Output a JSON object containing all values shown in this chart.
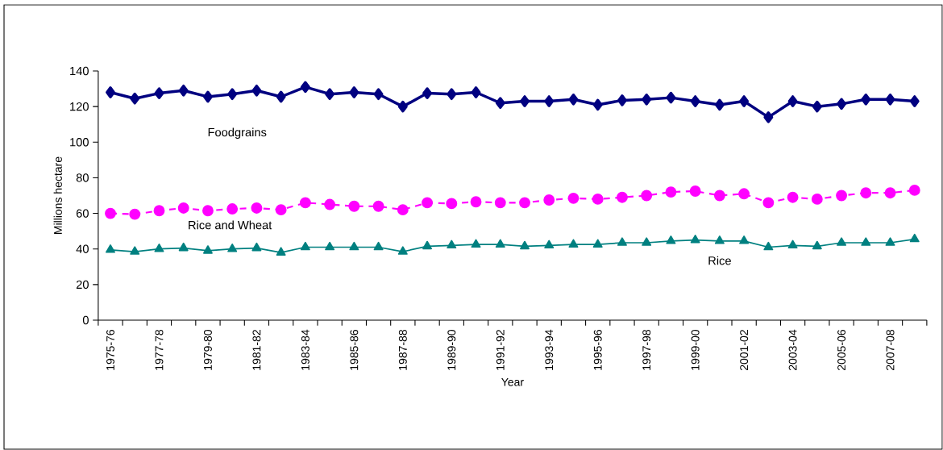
{
  "chart_data": {
    "type": "line",
    "xlabel": "Year",
    "ylabel": "Millions hectare",
    "categories": [
      "1975-76",
      null,
      "1977-78",
      null,
      "1979-80",
      null,
      "1981-82",
      null,
      "1983-84",
      null,
      "1985-86",
      null,
      "1987-88",
      null,
      "1989-90",
      null,
      "1991-92",
      null,
      "1993-94",
      null,
      "1995-96",
      null,
      "1997-98",
      null,
      "1999-00",
      null,
      "2001-02",
      null,
      "2003-04",
      null,
      "2005-06",
      null,
      "2007-08",
      null
    ],
    "series": [
      {
        "name": "Foodgrains",
        "color": "#000080",
        "marker": "diamond",
        "line_style": "solid",
        "values": [
          128,
          124.5,
          127.5,
          129,
          125.5,
          127,
          129,
          125.5,
          131,
          127,
          128,
          127,
          120,
          127.5,
          127,
          128,
          122,
          123,
          123,
          124,
          121,
          123.5,
          124,
          125,
          123,
          121,
          123,
          114,
          123,
          120,
          121.5,
          124,
          124,
          123
        ]
      },
      {
        "name": "Rice and Wheat",
        "color": "#ff00ff",
        "marker": "circle",
        "line_style": "dashed",
        "values": [
          60,
          59.5,
          61.5,
          63,
          61.5,
          62.5,
          63,
          62,
          66,
          65,
          64,
          64,
          62,
          66,
          65.5,
          66.5,
          66,
          66,
          67.5,
          68.5,
          68,
          69,
          70,
          72,
          72.5,
          70,
          71,
          66,
          69,
          68,
          70,
          71.5,
          71.5,
          73
        ]
      },
      {
        "name": "Rice",
        "color": "#008080",
        "marker": "triangle",
        "line_style": "solid",
        "values": [
          39.5,
          38.5,
          40,
          40.5,
          39,
          40,
          40.5,
          38,
          41,
          41,
          41,
          41,
          38.5,
          41.5,
          42,
          42.5,
          42.5,
          41.5,
          42,
          42.5,
          42.5,
          43.5,
          43.5,
          44.5,
          45,
          44.5,
          44.5,
          41,
          42,
          41.5,
          43.5,
          43.5,
          43.5,
          45.5
        ]
      }
    ],
    "ylim": [
      0,
      140
    ],
    "yticks": [
      0,
      20,
      40,
      60,
      80,
      100,
      120,
      140
    ],
    "grid": false,
    "legend": false
  }
}
